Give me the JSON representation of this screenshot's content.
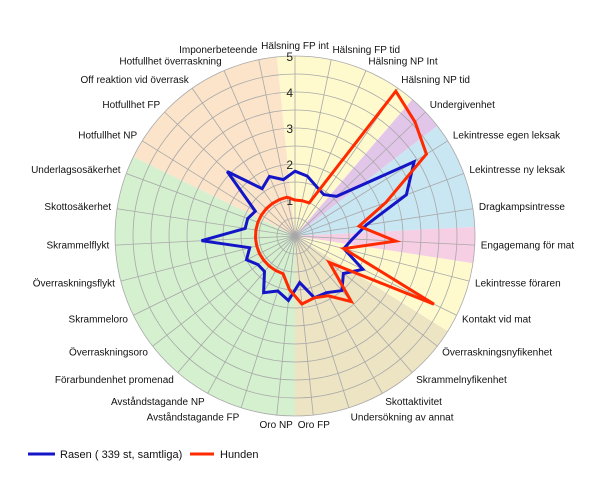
{
  "chart_data": {
    "type": "radar",
    "r_range": [
      0,
      5
    ],
    "ticks": [
      1,
      2,
      3,
      4,
      5
    ],
    "tick_labels": [
      "1",
      "2",
      "3",
      "4",
      "5"
    ],
    "grid": true,
    "legend_position": "bottom-left",
    "axes": [
      "Hälsning FP int",
      "Hälsning FP tid",
      "Hälsning NP Int",
      "Hälsning NP tid",
      "Undergivenhet",
      "Lekintresse egen leksak",
      "Lekintresse ny leksak",
      "Dragkampsintresse",
      "Engagemang för mat",
      "Lekintresse föraren",
      "Kontakt vid mat",
      "Överraskningsnyfikenhet",
      "Skrammelnyfikenhet",
      "Skottaktivitet",
      "Undersökning av annat",
      "Oro FP",
      "Oro NP",
      "Avståndstagande FP",
      "Avståndstagande NP",
      "Förarbundenhet promenad",
      "Överraskningsoro",
      "Skrammeloro",
      "Överraskningsflykt",
      "Skrammelflykt",
      "Skottosäkerhet",
      "Underlagsosäkerhet",
      "Hotfullhet NP",
      "Hotfullhet FP",
      "Off reaktion vid överrask",
      "Hotfullhet överraskning",
      "Imponerbeteende"
    ],
    "sectors": [
      {
        "from": 0,
        "to": 3,
        "color": "#fffacd"
      },
      {
        "from": 4,
        "to": 4,
        "color": "#e2c6e9"
      },
      {
        "from": 5,
        "to": 7,
        "color": "#c9e6f3"
      },
      {
        "from": 8,
        "to": 8,
        "color": "#f6cfe4"
      },
      {
        "from": 9,
        "to": 10,
        "color": "#fffacd"
      },
      {
        "from": 11,
        "to": 15,
        "color": "#ede4c4"
      },
      {
        "from": 16,
        "to": 25,
        "color": "#d4f0cf"
      },
      {
        "from": 26,
        "to": 30,
        "color": "#fbe4c9"
      }
    ],
    "series": [
      {
        "name": "Rasen ( 339 st, samtliga)",
        "color": "#1515c8",
        "values": [
          1.8,
          1.7,
          1.5,
          1.4,
          1.6,
          3.9,
          3.3,
          2.0,
          1.6,
          1.4,
          2.1,
          1.7,
          2.0,
          1.8,
          1.8,
          1.3,
          1.8,
          1.6,
          1.8,
          1.3,
          1.3,
          1.5,
          1.3,
          2.6,
          1.4,
          1.4,
          1.3,
          2.6,
          1.6,
          1.8,
          1.6
        ]
      },
      {
        "name": "Hunden",
        "color": "#ff2a00",
        "values": [
          1.0,
          1.0,
          1.0,
          4.9,
          4.6,
          4.3,
          2.7,
          1.8,
          2.8,
          1.4,
          4.3,
          1.2,
          2.4,
          1.9,
          1.8,
          1.9,
          1.5,
          1.1,
          1.1,
          1.1,
          1.1,
          1.1,
          1.1,
          1.1,
          1.1,
          1.1,
          1.1,
          1.1,
          1.1,
          1.1,
          1.1
        ]
      }
    ]
  }
}
